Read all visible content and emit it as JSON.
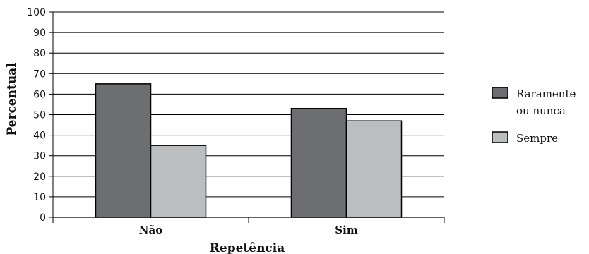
{
  "chart_data": {
    "type": "bar",
    "categories": [
      "Não",
      "Sim"
    ],
    "series": [
      {
        "name": "Raramente ou nunca",
        "legend_lines": [
          "Raramente",
          "ou nunca"
        ],
        "values": [
          65,
          53
        ],
        "color": "#6d6e71"
      },
      {
        "name": "Sempre",
        "legend_lines": [
          "Sempre"
        ],
        "values": [
          35,
          47
        ],
        "color": "#bcbdbf"
      }
    ],
    "xlabel": "Repetência",
    "ylabel": "Percentual",
    "ylim": [
      0,
      100
    ],
    "yticks": [
      0,
      10,
      20,
      30,
      40,
      50,
      60,
      70,
      80,
      90,
      100
    ],
    "grid": true,
    "legend_position": "right"
  }
}
